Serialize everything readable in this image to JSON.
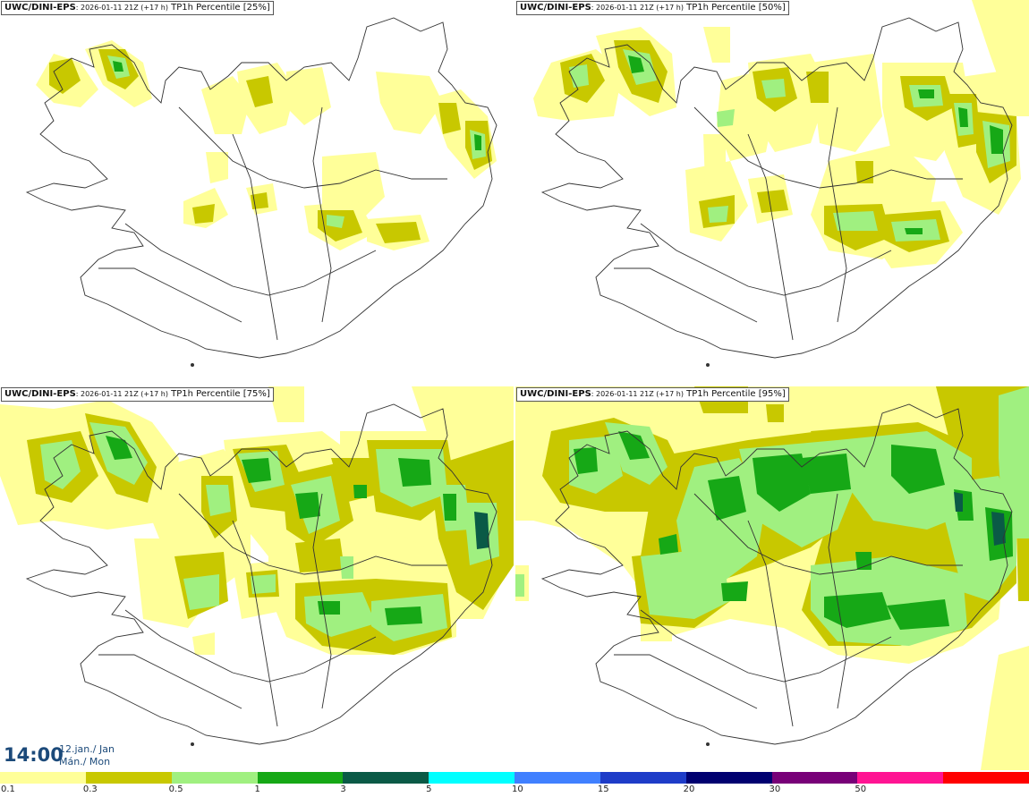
{
  "panels": [
    {
      "model": "UWC/DINI-EPS",
      "run": ": 2026-01-11 21Z (+17 h)",
      "field": " TP1h Percentile [25%]"
    },
    {
      "model": "UWC/DINI-EPS",
      "run": ": 2026-01-11 21Z (+17 h)",
      "field": " TP1h Percentile [50%]"
    },
    {
      "model": "UWC/DINI-EPS",
      "run": ": 2026-01-11 21Z (+17 h)",
      "field": " TP1h Percentile [75%]"
    },
    {
      "model": "UWC/DINI-EPS",
      "run": ": 2026-01-11 21Z (+17 h)",
      "field": " TP1h Percentile [95%]"
    }
  ],
  "valid_time": {
    "clock": "14:00",
    "date_line1": "12.jan./ Jan",
    "date_line2": "Mán./ Mon"
  },
  "legend": {
    "colors": [
      "#ffff99",
      "#c8c800",
      "#a0f080",
      "#16a816",
      "#0a5a46",
      "#00ffff",
      "#4080ff",
      "#1e3cc8",
      "#000070",
      "#780078",
      "#ff1493",
      "#ff0000"
    ],
    "ticks": [
      "0.1",
      "0.3",
      "0.5",
      "1",
      "3",
      "5",
      "10",
      "15",
      "20",
      "30",
      "50"
    ]
  },
  "colors": {
    "light": "#ffff99",
    "olive": "#c8c800",
    "lightgreen": "#a0f080",
    "green": "#16a816",
    "darkgreen": "#0a5a46",
    "coast": "#333333"
  }
}
